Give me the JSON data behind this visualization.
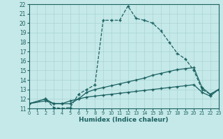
{
  "xlabel": "Humidex (Indice chaleur)",
  "bg_color": "#c5e8e8",
  "line_color": "#1a6060",
  "grid_major_color": "#aad4d4",
  "grid_minor_color": "#c0dfdf",
  "xlim": [
    0,
    23
  ],
  "ylim": [
    11,
    22
  ],
  "xticks": [
    0,
    1,
    2,
    3,
    4,
    5,
    6,
    7,
    8,
    9,
    10,
    11,
    12,
    13,
    14,
    15,
    16,
    17,
    18,
    19,
    20,
    21,
    22,
    23
  ],
  "yticks": [
    11,
    12,
    13,
    14,
    15,
    16,
    17,
    18,
    19,
    20,
    21,
    22
  ],
  "line1_x": [
    0,
    2,
    3,
    4,
    5,
    6,
    7,
    8,
    9,
    10,
    11,
    12,
    13,
    14,
    15,
    16,
    17,
    18,
    19,
    20,
    21,
    22,
    23
  ],
  "line1_y": [
    11.5,
    12,
    11.1,
    11.0,
    11.1,
    12.5,
    13.0,
    13.5,
    20.3,
    20.3,
    20.3,
    21.8,
    20.5,
    20.3,
    20.0,
    19.2,
    18.0,
    16.8,
    16.2,
    15.0,
    13.0,
    12.5,
    13.0
  ],
  "line2_x": [
    0,
    2,
    3,
    4,
    5,
    6,
    7,
    8,
    9,
    10,
    11,
    12,
    13,
    14,
    15,
    16,
    17,
    18,
    19,
    20,
    21,
    22,
    23
  ],
  "line2_y": [
    11.5,
    12.0,
    11.5,
    11.5,
    11.5,
    12.0,
    12.7,
    13.0,
    13.2,
    13.4,
    13.6,
    13.8,
    14.0,
    14.2,
    14.5,
    14.7,
    14.9,
    15.1,
    15.2,
    15.3,
    13.2,
    12.5,
    13.0
  ],
  "line3_x": [
    0,
    2,
    3,
    4,
    5,
    6,
    7,
    8,
    9,
    10,
    11,
    12,
    13,
    14,
    15,
    16,
    17,
    18,
    19,
    20,
    21,
    22,
    23
  ],
  "line3_y": [
    11.5,
    11.8,
    11.5,
    11.5,
    11.8,
    12.0,
    12.2,
    12.3,
    12.4,
    12.5,
    12.6,
    12.7,
    12.8,
    12.9,
    13.0,
    13.1,
    13.2,
    13.3,
    13.4,
    13.5,
    12.7,
    12.3,
    13.0
  ],
  "tick_fontsize": 5.5,
  "xlabel_fontsize": 6.5
}
